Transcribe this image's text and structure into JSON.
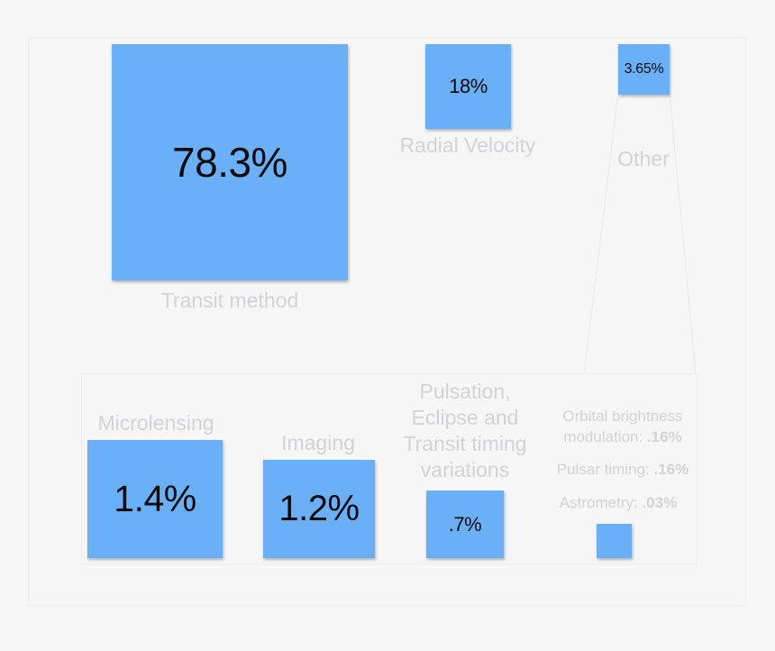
{
  "chart_data": {
    "type": "treemap",
    "title": "",
    "unit": "%",
    "main": [
      {
        "name": "Transit method",
        "value": 78.3,
        "value_label": "78.3%"
      },
      {
        "name": "Radial Velocity",
        "value": 18,
        "value_label": "18%"
      },
      {
        "name": "Other",
        "value": 3.65,
        "value_label": "3.65%"
      }
    ],
    "other_breakdown": [
      {
        "name": "Microlensing",
        "value": 1.4,
        "value_label": "1.4%"
      },
      {
        "name": "Imaging",
        "value": 1.2,
        "value_label": "1.2%"
      },
      {
        "name_lines": [
          "Pulsation,",
          "Eclipse and",
          "Transit timing",
          "variations"
        ],
        "value": 0.7,
        "value_label": ".7%"
      },
      {
        "name": "Orbital brightness modulation",
        "value": 0.16,
        "value_label": ".16%"
      },
      {
        "name": "Pulsar timing",
        "value": 0.16,
        "value_label": ".16%"
      },
      {
        "name": "Astrometry",
        "value": 0.03,
        "value_label": ".03%"
      }
    ],
    "small_labels": {
      "orbital_line1": "Orbital brightness",
      "orbital_line2": "modulation:",
      "orbital_value": ".16%",
      "pulsar": "Pulsar timing:",
      "pulsar_value": ".16%",
      "astrometry": "Astrometry:",
      "astrometry_value": ".03%"
    },
    "colors": {
      "box": "#69b0f9",
      "label": "#d3d3d5",
      "value_text": "#0b0b0b"
    }
  }
}
